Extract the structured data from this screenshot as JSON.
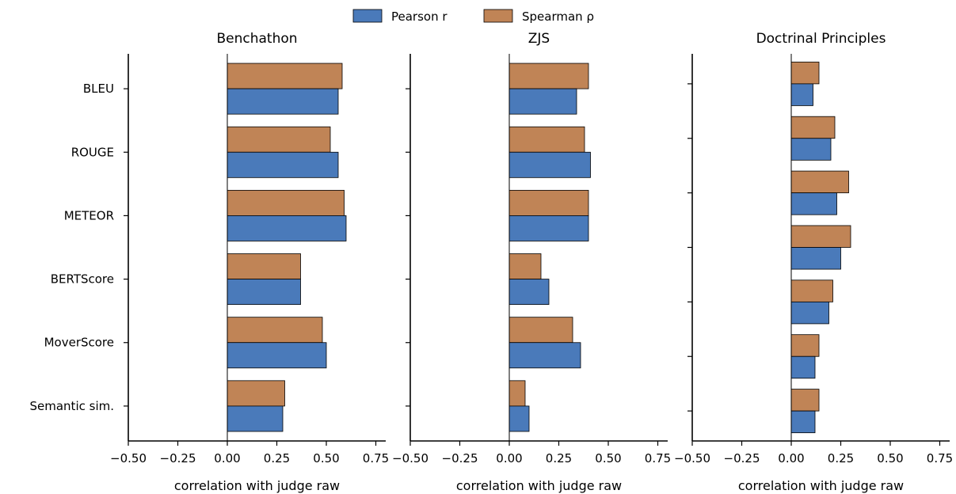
{
  "legend": {
    "entries": [
      {
        "label": "Pearson r",
        "color": "#4a7aba"
      },
      {
        "label": "Spearman ρ",
        "color": "#c08456"
      }
    ],
    "placement": "top-center"
  },
  "chart_data": [
    {
      "type": "bar",
      "orientation": "horizontal",
      "title": "Benchathon",
      "xlabel": "correlation with judge raw",
      "ylabel": "",
      "xlim": [
        -0.5,
        0.8
      ],
      "xticks": [
        "−0.50",
        "−0.25",
        "0.00",
        "0.25",
        "0.50",
        "0.75"
      ],
      "show_category_labels": true,
      "categories": [
        "BLEU",
        "ROUGE",
        "METEOR",
        "BERTScore",
        "MoverScore",
        "Semantic sim."
      ],
      "series": [
        {
          "name": "Pearson r",
          "color": "#4a7aba",
          "values": [
            0.56,
            0.56,
            0.6,
            0.37,
            0.5,
            0.28
          ]
        },
        {
          "name": "Spearman ρ",
          "color": "#c08456",
          "values": [
            0.58,
            0.52,
            0.59,
            0.37,
            0.48,
            0.29
          ]
        }
      ]
    },
    {
      "type": "bar",
      "orientation": "horizontal",
      "title": "ZJS",
      "xlabel": "correlation with judge raw",
      "ylabel": "",
      "xlim": [
        -0.5,
        0.8
      ],
      "xticks": [
        "−0.50",
        "−0.25",
        "0.00",
        "0.25",
        "0.50",
        "0.75"
      ],
      "show_category_labels": false,
      "categories": [
        "BLEU",
        "ROUGE",
        "METEOR",
        "BERTScore",
        "MoverScore",
        "Semantic sim."
      ],
      "series": [
        {
          "name": "Pearson r",
          "color": "#4a7aba",
          "values": [
            0.34,
            0.41,
            0.4,
            0.2,
            0.36,
            0.1
          ]
        },
        {
          "name": "Spearman ρ",
          "color": "#c08456",
          "values": [
            0.4,
            0.38,
            0.4,
            0.16,
            0.32,
            0.08
          ]
        }
      ]
    },
    {
      "type": "bar",
      "orientation": "horizontal",
      "title": "Doctrinal Principles",
      "xlabel": "correlation with judge raw",
      "ylabel": "",
      "xlim": [
        -0.5,
        0.8
      ],
      "xticks": [
        "−0.50",
        "−0.25",
        "0.00",
        "0.25",
        "0.50",
        "0.75"
      ],
      "show_category_labels": false,
      "categories": [
        "",
        "",
        "",
        "",
        "",
        "",
        ""
      ],
      "series": [
        {
          "name": "Pearson r",
          "color": "#4a7aba",
          "values": [
            0.11,
            0.2,
            0.23,
            0.25,
            0.19,
            0.12,
            0.12
          ]
        },
        {
          "name": "Spearman ρ",
          "color": "#c08456",
          "values": [
            0.14,
            0.22,
            0.29,
            0.3,
            0.21,
            0.14,
            0.14
          ]
        }
      ]
    }
  ]
}
